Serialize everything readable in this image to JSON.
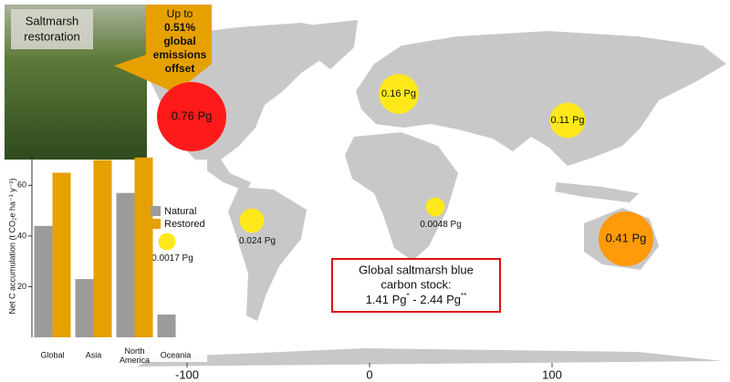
{
  "photo_label": [
    "Saltmarsh",
    "restoration"
  ],
  "callout": [
    "Up to",
    "0.51%",
    "global",
    "emissions",
    "offset"
  ],
  "stock_box": {
    "title": [
      "Global saltmarsh blue",
      "carbon stock:"
    ],
    "low": "1.41 Pg",
    "low_mark": "*",
    "sep": " - ",
    "high": "2.44 Pg",
    "high_mark": "**"
  },
  "chart_data": [
    {
      "type": "bubble-map",
      "lon": [
        -97.5,
        16,
        108.5,
        140.5,
        -64.5,
        36,
        -111
      ],
      "lat": [
        43.5,
        56,
        41.5,
        -23.5,
        -13.5,
        -6,
        -25
      ],
      "values": [
        0.76,
        0.16,
        0.11,
        0.41,
        0.024,
        0.0048,
        0.0017
      ],
      "value_labels": [
        "0.76 Pg",
        "0.16 Pg",
        "0.11 Pg",
        "0.41 Pg",
        "0.024 Pg",
        "0.0048 Pg",
        "0.0017 Pg"
      ],
      "colors": [
        "#ff1a1a",
        "#ffe81a",
        "#ffe81a",
        "#ff9a0a",
        "#ffe81a",
        "#ffe81a",
        "#ffe81a"
      ],
      "xlim": [
        -202.5,
        197.5
      ],
      "xticks": [
        -100,
        0,
        100
      ]
    },
    {
      "type": "bar",
      "ylabel": "Net C accumulation (t CO₂e ha⁻¹ y⁻¹)",
      "categories": [
        "Global",
        "Asia",
        "North America",
        "Oceania"
      ],
      "series": [
        {
          "name": "Natural",
          "color": "#9b9b9b",
          "values": [
            44,
            23,
            57,
            9
          ]
        },
        {
          "name": "Restored",
          "color": "#e6a000",
          "values": [
            65,
            70,
            71,
            null
          ]
        }
      ],
      "ylim": [
        0,
        72
      ],
      "yticks": [
        20,
        40,
        60
      ]
    }
  ]
}
